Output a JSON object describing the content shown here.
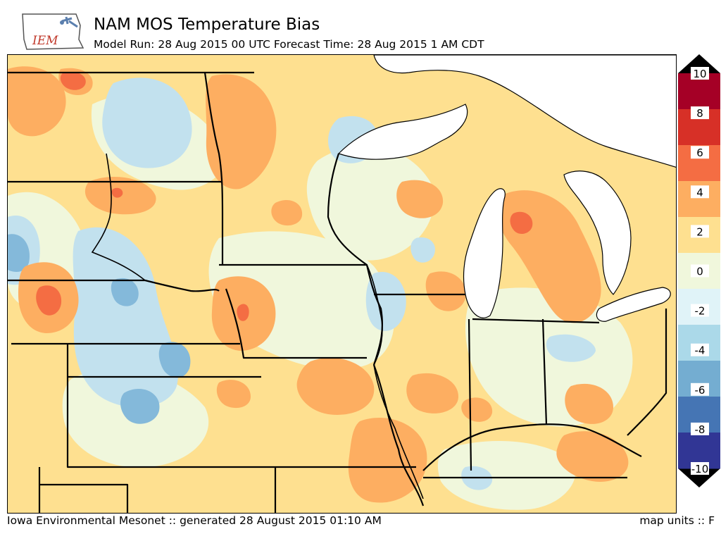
{
  "header": {
    "logo_text": "IEM",
    "title": "NAM MOS Temperature Bias",
    "subtitle": "Model Run: 28 Aug 2015 00 UTC Forecast Time: 28 Aug 2015 1 AM CDT"
  },
  "legend": {
    "ticks": [
      "10",
      "8",
      "6",
      "4",
      "2",
      "0",
      "-2",
      "-4",
      "-6",
      "-8",
      "-10"
    ],
    "colors": [
      "#a50026",
      "#d73027",
      "#f46d43",
      "#fdae61",
      "#fee090",
      "#f0f7dc",
      "#e0f3f8",
      "#abd9e9",
      "#74add1",
      "#4575b4",
      "#313695"
    ]
  },
  "palette": {
    "pos4": "#f46d43",
    "pos2": "#fdae61",
    "pos0": "#fee090",
    "neg0": "#f0f7dc",
    "neg2": "#c2e1ee",
    "neg4": "#84b9da",
    "neg6": "#4575b4"
  },
  "footer": {
    "left": "Iowa Environmental Mesonet :: generated 28 August 2015 01:10 AM",
    "right": "map units :: F"
  }
}
